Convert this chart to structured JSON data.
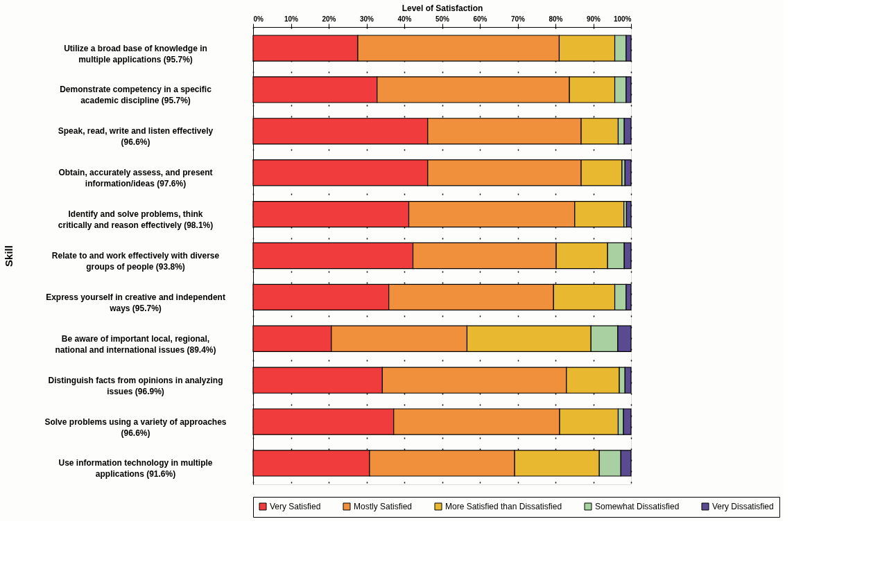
{
  "chart_data": {
    "type": "bar",
    "orientation": "horizontal",
    "stacked": true,
    "xlabel": "Level of Satisfaction",
    "ylabel": "Skill",
    "categories": [
      "Utilize a broad base of knowledge in multiple applications (95.7%)",
      "Demonstrate competency in a specific academic discipline (95.7%)",
      "Speak, read, write and listen effectively (96.6%)",
      "Obtain, accurately assess, and present information/ideas (97.6%)",
      "Identify and solve problems, think critically and reason effectively (98.1%)",
      "Relate to and work effectively with diverse groups of people (93.8%)",
      "Express yourself in creative and independent ways (95.7%)",
      "Be aware of important local, regional, national and international issues (89.4%)",
      "Distinguish facts from opinions in analyzing issues (96.9%)",
      "Solve problems using a variety of approaches (96.6%)",
      "Use information technology in multiple applications (91.6%)"
    ],
    "series": [
      {
        "name": "Very Satisfied",
        "color": "#f03c3c",
        "values": [
          27.7,
          32.8,
          46.2,
          46.2,
          41.2,
          42.3,
          35.9,
          20.7,
          34.2,
          37.2,
          30.8
        ]
      },
      {
        "name": "Mostly Satisfied",
        "color": "#f0903c",
        "values": [
          53.3,
          50.9,
          40.6,
          40.6,
          43.9,
          37.9,
          43.6,
          35.9,
          48.7,
          43.9,
          38.4
        ]
      },
      {
        "name": "More Satisfied than Dissatisfied",
        "color": "#e8b830",
        "values": [
          14.7,
          12.0,
          9.8,
          10.8,
          13.0,
          13.6,
          16.2,
          32.8,
          14.0,
          15.5,
          22.4
        ]
      },
      {
        "name": "Somewhat Dissatisfied",
        "color": "#a8d0a0",
        "values": [
          3.0,
          3.0,
          1.6,
          0.8,
          0.7,
          4.4,
          3.0,
          7.1,
          1.5,
          1.4,
          5.7
        ]
      },
      {
        "name": "Very Dissatisfied",
        "color": "#5a4a90",
        "values": [
          1.3,
          1.3,
          1.8,
          1.6,
          1.2,
          1.8,
          1.3,
          3.5,
          1.6,
          2.0,
          2.7
        ]
      }
    ],
    "xlim": [
      0,
      100
    ],
    "xticks": [
      {
        "value": 0,
        "label": "0%"
      },
      {
        "value": 10,
        "label": "10%"
      },
      {
        "value": 20,
        "label": "20%"
      },
      {
        "value": 30,
        "label": "30%"
      },
      {
        "value": 40,
        "label": "40%"
      },
      {
        "value": 50,
        "label": "50%"
      },
      {
        "value": 60,
        "label": "60%"
      },
      {
        "value": 70,
        "label": "70%"
      },
      {
        "value": 80,
        "label": "80%"
      },
      {
        "value": 90,
        "label": "90%"
      },
      {
        "value": 100,
        "label": "100%"
      }
    ],
    "grid": "x",
    "legend": "bottom"
  }
}
